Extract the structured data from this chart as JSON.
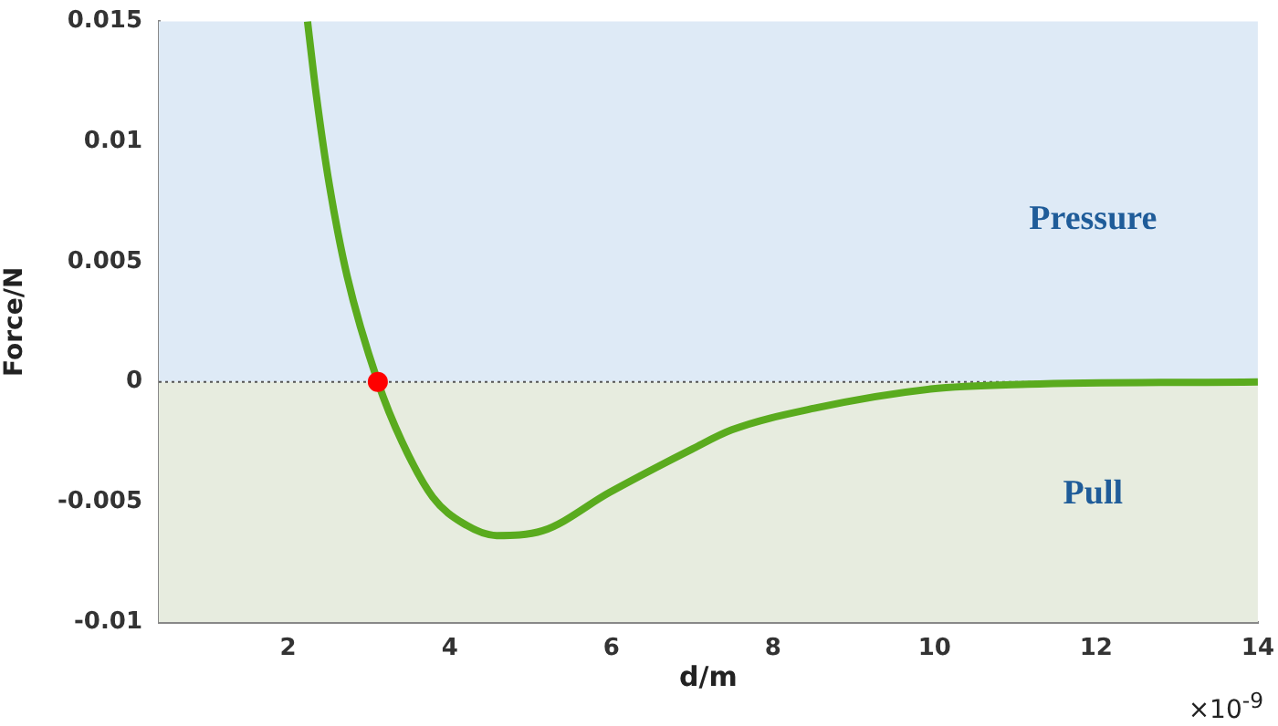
{
  "chart_data": {
    "type": "line",
    "xlabel": "d/m",
    "ylabel": "Force/N",
    "xlim": [
      0.4,
      14
    ],
    "xticks": [
      2,
      4,
      6,
      8,
      10,
      12,
      14
    ],
    "ylim": [
      -0.01,
      0.015
    ],
    "yticks": [
      -0.01,
      -0.005,
      0,
      0.005,
      0.01,
      0.015
    ],
    "series": [
      {
        "color": "#5aab1e",
        "marker": "none",
        "x": [
          2.24,
          2.35,
          2.51,
          2.73,
          3.11,
          3.41,
          3.79,
          4.17,
          4.58,
          5.15,
          5.98,
          7.0,
          7.49,
          8.51,
          9.95,
          11.15,
          14
        ],
        "values": [
          0.015,
          0.0119,
          0.0082,
          0.0044,
          0,
          -0.0025,
          -0.0048,
          -0.0059,
          -0.0064,
          -0.0062,
          -0.0046,
          -0.0028,
          -0.002,
          -0.0011,
          -0.0003,
          -0.0001,
          0
        ]
      },
      {
        "type": "scatter",
        "color": "#ff0000",
        "marker": "circle",
        "x": [
          3.11
        ],
        "values": [
          0
        ]
      }
    ],
    "bands": [
      {
        "axis": "y",
        "from": 0,
        "to": 0.015,
        "label": "Pressure",
        "color": "#deeaf6"
      },
      {
        "axis": "y",
        "from": -0.01,
        "to": 0,
        "label": "Pull",
        "color": "#e7ecdf"
      }
    ],
    "ref_lines": [
      {
        "axis": "y",
        "value": 0,
        "color": "#555555",
        "line_style": "dotted"
      }
    ],
    "annotations": [
      "×10$^{-9}$"
    ],
    "line_style": "solid",
    "grid": false,
    "legend": false
  }
}
